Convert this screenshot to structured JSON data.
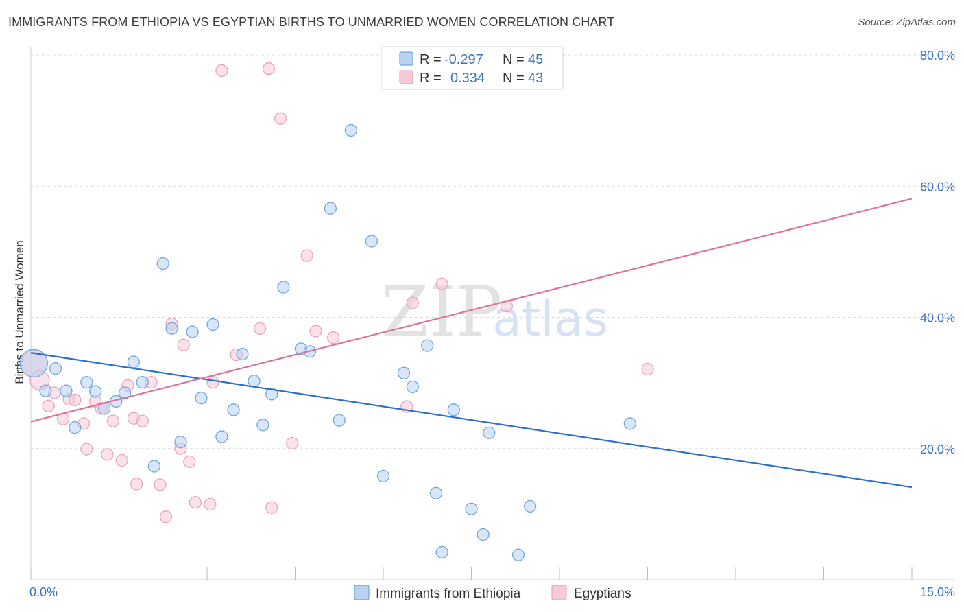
{
  "title": "IMMIGRANTS FROM ETHIOPIA VS EGYPTIAN BIRTHS TO UNMARRIED WOMEN CORRELATION CHART",
  "source": "Source: ZipAtlas.com",
  "watermark": {
    "zip": "ZIP",
    "atlas": "atlas"
  },
  "chart_data": {
    "type": "scatter",
    "xlabel": "",
    "ylabel": "Births to Unmarried Women",
    "xlim": [
      0,
      15
    ],
    "ylim": [
      0,
      80
    ],
    "x_tick_labels": [
      "0.0%",
      "15.0%"
    ],
    "y_ticks": [
      20,
      40,
      60,
      80
    ],
    "y_tick_labels": [
      "20.0%",
      "40.0%",
      "60.0%",
      "80.0%"
    ],
    "grid": true,
    "series": [
      {
        "name": "Immigrants from Ethiopia",
        "color": "#6fa8dc",
        "fill": "#b9d2f0",
        "line_color": "#2c6fcf",
        "stats": {
          "r_label": "R =",
          "r": "-0.297",
          "n_label": "N =",
          "n": "45"
        },
        "trend": {
          "x0": 0,
          "y0": 34.6,
          "x1": 15,
          "y1": 14.1
        },
        "points": [
          [
            0.05,
            33.0,
            20
          ],
          [
            0.25,
            28.8,
            10
          ],
          [
            0.42,
            32.2,
            10
          ],
          [
            0.6,
            28.8,
            10
          ],
          [
            0.75,
            23.2,
            10
          ],
          [
            0.95,
            30.1,
            10
          ],
          [
            1.1,
            28.7,
            10
          ],
          [
            1.25,
            26.1,
            10
          ],
          [
            1.45,
            27.2,
            10
          ],
          [
            1.6,
            28.5,
            10
          ],
          [
            1.75,
            33.2,
            10
          ],
          [
            1.9,
            30.1,
            10
          ],
          [
            2.1,
            17.3,
            10
          ],
          [
            2.25,
            48.2,
            10
          ],
          [
            2.4,
            38.3,
            10
          ],
          [
            2.55,
            21.0,
            10
          ],
          [
            2.75,
            37.8,
            10
          ],
          [
            2.9,
            27.7,
            10
          ],
          [
            3.1,
            38.9,
            10
          ],
          [
            3.25,
            21.8,
            10
          ],
          [
            3.45,
            25.9,
            10
          ],
          [
            3.6,
            34.4,
            10
          ],
          [
            3.8,
            30.3,
            10
          ],
          [
            3.95,
            23.6,
            10
          ],
          [
            4.1,
            28.3,
            10
          ],
          [
            4.3,
            44.6,
            10
          ],
          [
            4.6,
            35.2,
            10
          ],
          [
            4.75,
            34.8,
            10
          ],
          [
            5.1,
            56.6,
            10
          ],
          [
            5.25,
            24.3,
            10
          ],
          [
            5.45,
            68.5,
            10
          ],
          [
            5.8,
            51.6,
            10
          ],
          [
            6.0,
            15.8,
            10
          ],
          [
            6.35,
            31.5,
            10
          ],
          [
            6.5,
            29.4,
            10
          ],
          [
            6.75,
            35.7,
            10
          ],
          [
            6.9,
            13.2,
            10
          ],
          [
            7.2,
            25.9,
            10
          ],
          [
            7.5,
            10.8,
            10
          ],
          [
            7.8,
            22.4,
            10
          ],
          [
            8.5,
            11.2,
            10
          ],
          [
            10.2,
            23.8,
            10
          ],
          [
            7.0,
            4.2,
            10
          ],
          [
            7.7,
            6.9,
            10
          ],
          [
            8.3,
            3.8,
            10
          ]
        ]
      },
      {
        "name": "Egyptians",
        "color": "#eba2bb",
        "fill": "#f7c9d8",
        "line_color": "#e0709a",
        "stats": {
          "r_label": "R =",
          "r": "0.334",
          "n_label": "N =",
          "n": "43"
        },
        "trend": {
          "x0": 0,
          "y0": 24.1,
          "x1": 15,
          "y1": 58.1
        },
        "points": [
          [
            0.05,
            33.0,
            20
          ],
          [
            0.15,
            30.4,
            14
          ],
          [
            0.3,
            26.5,
            10
          ],
          [
            0.4,
            28.5,
            10
          ],
          [
            0.55,
            24.5,
            10
          ],
          [
            0.65,
            27.5,
            10
          ],
          [
            0.75,
            27.4,
            10
          ],
          [
            0.9,
            23.8,
            10
          ],
          [
            0.95,
            19.9,
            10
          ],
          [
            1.1,
            27.2,
            10
          ],
          [
            1.2,
            26.1,
            10
          ],
          [
            1.3,
            19.1,
            10
          ],
          [
            1.4,
            24.2,
            10
          ],
          [
            1.55,
            18.2,
            10
          ],
          [
            1.65,
            29.6,
            10
          ],
          [
            1.75,
            24.6,
            10
          ],
          [
            1.8,
            14.6,
            10
          ],
          [
            1.9,
            24.2,
            10
          ],
          [
            2.05,
            30.1,
            10
          ],
          [
            2.2,
            14.5,
            10
          ],
          [
            2.3,
            9.6,
            10
          ],
          [
            2.4,
            39.0,
            10
          ],
          [
            2.6,
            35.8,
            10
          ],
          [
            2.55,
            20.0,
            10
          ],
          [
            2.7,
            18.0,
            10
          ],
          [
            2.8,
            11.8,
            10
          ],
          [
            3.05,
            11.5,
            10
          ],
          [
            3.1,
            30.1,
            10
          ],
          [
            3.5,
            34.3,
            10
          ],
          [
            3.9,
            38.3,
            10
          ],
          [
            3.25,
            77.6,
            10
          ],
          [
            4.05,
            77.9,
            10
          ],
          [
            4.25,
            70.3,
            10
          ],
          [
            4.1,
            11.0,
            10
          ],
          [
            4.45,
            20.8,
            10
          ],
          [
            4.7,
            49.4,
            10
          ],
          [
            4.85,
            37.9,
            10
          ],
          [
            5.15,
            36.9,
            10
          ],
          [
            6.4,
            26.4,
            10
          ],
          [
            6.5,
            42.2,
            10
          ],
          [
            7.0,
            45.1,
            10
          ],
          [
            8.1,
            41.7,
            10
          ],
          [
            10.5,
            32.1,
            10
          ]
        ]
      }
    ]
  }
}
